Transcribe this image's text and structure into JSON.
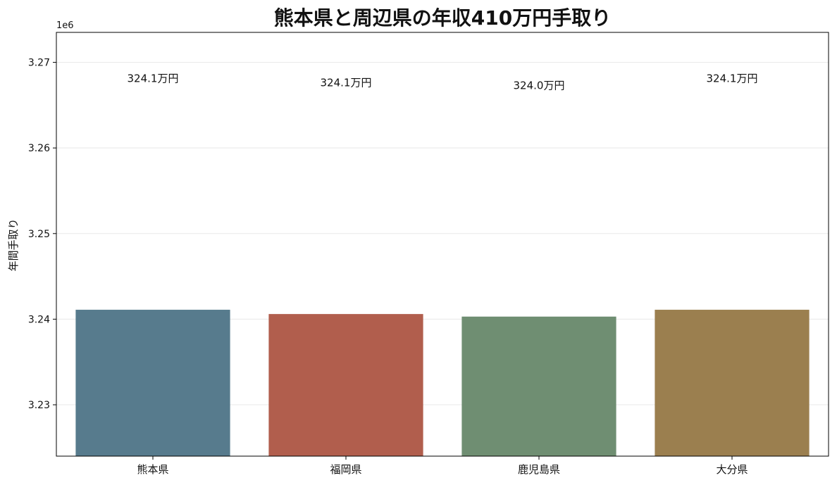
{
  "chart_data": {
    "type": "bar",
    "title": "熊本県と周辺県の年収410万円手取り",
    "ylabel": "年間手取り",
    "xlabel": "",
    "offset_label": "1e6",
    "categories": [
      "熊本県",
      "福岡県",
      "鹿児島県",
      "大分県"
    ],
    "values": [
      3241100,
      3240600,
      3240300,
      3241100
    ],
    "value_labels": [
      "324.1万円",
      "324.1万円",
      "324.0万円",
      "324.1万円"
    ],
    "colors": [
      "#577b8d",
      "#b15e4d",
      "#6f8e72",
      "#9b7f4f"
    ],
    "ylim": [
      3224000,
      3273500
    ],
    "yticks": [
      3230000,
      3240000,
      3250000,
      3260000,
      3270000
    ],
    "ytick_labels": [
      "3.23",
      "3.24",
      "3.25",
      "3.26",
      "3.27"
    ],
    "grid": true
  }
}
